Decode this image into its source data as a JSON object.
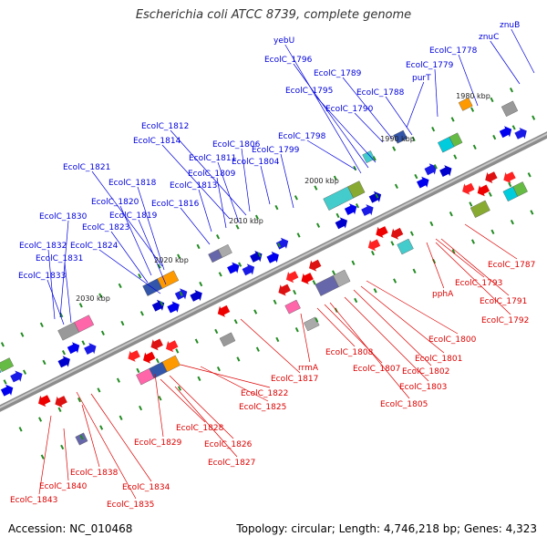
{
  "title": "Escherichia coli ATCC 8739, complete genome",
  "accession_text": "Accession: NC_010468",
  "topology_text": "Topology: circular; Length: 4,746,218 bp; Genes: 4,323",
  "colors": {
    "backbone": "#8c8c8c",
    "upper_label": "#0000dd",
    "lower_label": "#dd0000",
    "tick": "#228b22",
    "strand_plus": "#0000ee",
    "strand_minus": "#ee0000"
  },
  "coordinates": [
    "2030 kbp",
    "2020 kbp",
    "2010 kbp",
    "2000 kbp",
    "1990 kbp",
    "1980 kbp"
  ],
  "upper_labels": [
    "EcolC_1833",
    "EcolC_1831",
    "EcolC_1832",
    "EcolC_1830",
    "EcolC_1824",
    "EcolC_1823",
    "EcolC_1819",
    "EcolC_1820",
    "EcolC_1818",
    "EcolC_1821",
    "EcolC_1816",
    "EcolC_1813",
    "EcolC_1809",
    "EcolC_1811",
    "EcolC_1814",
    "EcolC_1812",
    "EcolC_1806",
    "EcolC_1804",
    "EcolC_1799",
    "EcolC_1798",
    "EcolC_1795",
    "EcolC_1796",
    "yebU",
    "EcolC_1789",
    "EcolC_1790",
    "EcolC_1788",
    "purT",
    "EcolC_1779",
    "EcolC_1778",
    "znuC",
    "znuB"
  ],
  "lower_labels": [
    "EcolC_1843",
    "EcolC_1840",
    "EcolC_1838",
    "EcolC_1835",
    "EcolC_1834",
    "EcolC_1829",
    "EcolC_1827",
    "EcolC_1826",
    "EcolC_1828",
    "EcolC_1825",
    "EcolC_1822",
    "EcolC_1817",
    "rrmA",
    "EcolC_1808",
    "EcolC_1807",
    "EcolC_1805",
    "EcolC_1803",
    "EcolC_1802",
    "EcolC_1801",
    "EcolC_1800",
    "pphA",
    "EcolC_1793",
    "EcolC_1791",
    "EcolC_1792",
    "EcolC_1787"
  ]
}
